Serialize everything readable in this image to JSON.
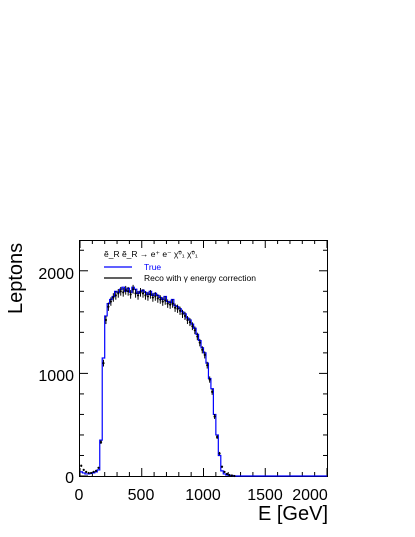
{
  "chart_data": {
    "type": "line",
    "xlabel": "E [GeV]",
    "ylabel": "Leptons",
    "xlim": [
      0,
      2000
    ],
    "ylim": [
      0,
      2300
    ],
    "x_ticks": [
      "0",
      "500",
      "1000",
      "1500",
      "2000"
    ],
    "y_ticks": [
      "0",
      "1000",
      "2000"
    ],
    "grid": false,
    "legend_position": "top-left",
    "legend_title": "ẽ_R ẽ_R → e⁺ e⁻ χ̃⁰₁ χ̃⁰₁",
    "series": [
      {
        "name": "True",
        "style": "histogram",
        "color": "#0000ff",
        "bin_width": 20,
        "x": [
          0,
          20,
          40,
          60,
          80,
          100,
          120,
          140,
          160,
          180,
          200,
          220,
          240,
          260,
          280,
          300,
          320,
          340,
          360,
          380,
          400,
          420,
          440,
          460,
          480,
          500,
          520,
          540,
          560,
          580,
          600,
          620,
          640,
          660,
          680,
          700,
          720,
          740,
          760,
          780,
          800,
          820,
          840,
          860,
          880,
          900,
          920,
          940,
          960,
          980,
          1000,
          1020,
          1040,
          1060,
          1080,
          1100,
          1120,
          1140,
          1160,
          1180,
          1200,
          1220,
          1240,
          1260,
          1280,
          1300,
          1400,
          1500,
          1600,
          1700,
          1800,
          1900,
          1980
        ],
        "values": [
          40,
          30,
          20,
          20,
          25,
          30,
          40,
          60,
          350,
          1150,
          1560,
          1680,
          1720,
          1750,
          1800,
          1790,
          1820,
          1840,
          1800,
          1830,
          1790,
          1840,
          1820,
          1780,
          1800,
          1810,
          1790,
          1770,
          1800,
          1760,
          1780,
          1760,
          1740,
          1720,
          1750,
          1700,
          1690,
          1720,
          1660,
          1650,
          1630,
          1600,
          1580,
          1540,
          1520,
          1480,
          1440,
          1380,
          1320,
          1250,
          1200,
          1100,
          950,
          850,
          600,
          400,
          200,
          50,
          20,
          10,
          5,
          5,
          0,
          0,
          0,
          0,
          0,
          0,
          0,
          0,
          0,
          0,
          0
        ]
      },
      {
        "name": "Reco with γ energy correction",
        "style": "points",
        "color": "#000000",
        "x": [
          10,
          30,
          50,
          70,
          90,
          110,
          130,
          150,
          170,
          190,
          210,
          230,
          250,
          270,
          290,
          310,
          330,
          350,
          370,
          390,
          410,
          430,
          450,
          470,
          490,
          510,
          530,
          550,
          570,
          590,
          610,
          630,
          650,
          670,
          690,
          710,
          730,
          750,
          770,
          790,
          810,
          830,
          850,
          870,
          890,
          910,
          930,
          950,
          970,
          990,
          1010,
          1030,
          1050,
          1070,
          1090,
          1110,
          1130,
          1150,
          1170,
          1190,
          1210,
          1230,
          1250
        ],
        "values": [
          100,
          60,
          40,
          30,
          30,
          40,
          50,
          80,
          330,
          1100,
          1520,
          1650,
          1700,
          1740,
          1760,
          1780,
          1800,
          1790,
          1810,
          1800,
          1770,
          1820,
          1780,
          1760,
          1790,
          1780,
          1760,
          1750,
          1770,
          1740,
          1750,
          1730,
          1720,
          1700,
          1710,
          1680,
          1670,
          1680,
          1640,
          1630,
          1610,
          1580,
          1560,
          1520,
          1500,
          1460,
          1420,
          1360,
          1300,
          1230,
          1180,
          1080,
          940,
          820,
          580,
          380,
          220,
          90,
          40,
          20,
          10,
          5,
          0
        ]
      }
    ]
  }
}
